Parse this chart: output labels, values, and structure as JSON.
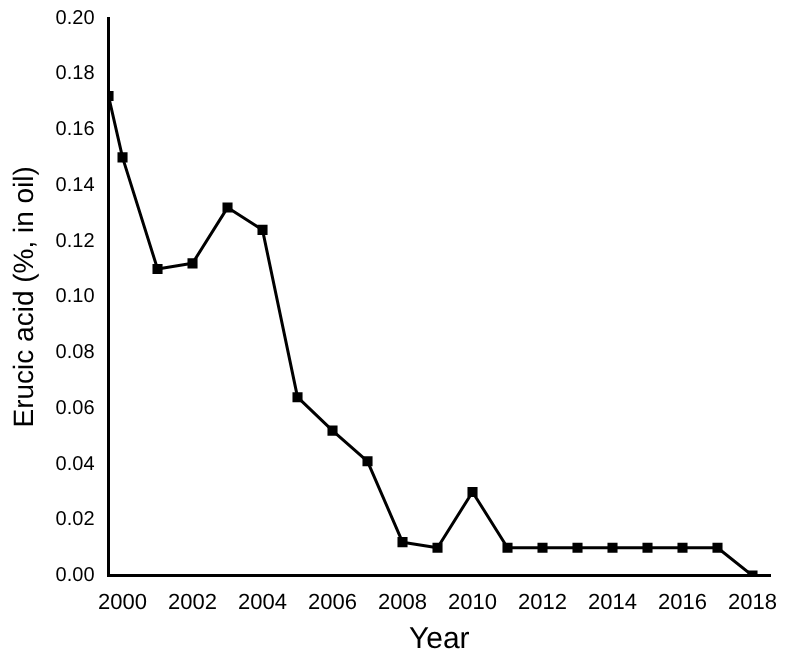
{
  "chart_data": {
    "type": "line",
    "xlabel": "Year",
    "ylabel": "Erucic acid (%, in oil)",
    "x": [
      1999.6,
      2000,
      2001,
      2002,
      2003,
      2004,
      2005,
      2006,
      2007,
      2008,
      2009,
      2010,
      2011,
      2012,
      2013,
      2014,
      2015,
      2016,
      2017,
      2018
    ],
    "series": [
      {
        "color": "#000000",
        "values": [
          0.172,
          0.15,
          0.11,
          0.112,
          0.132,
          0.124,
          0.064,
          0.052,
          0.041,
          0.012,
          0.01,
          0.03,
          0.01,
          0.01,
          0.01,
          0.01,
          0.01,
          0.01,
          0.01,
          0
        ]
      }
    ],
    "xlim": [
      1999.6,
      2018.5
    ],
    "xticks": [
      2000,
      2002,
      2004,
      2006,
      2008,
      2010,
      2012,
      2014,
      2016,
      2018
    ],
    "ylim": [
      0,
      0.2
    ],
    "yticks": [
      {
        "value": 0,
        "label": "0.00"
      },
      {
        "value": 0.02,
        "label": "0.02"
      },
      {
        "value": 0.04,
        "label": "0.04"
      },
      {
        "value": 0.06,
        "label": "0.06"
      },
      {
        "value": 0.08,
        "label": "0.08"
      },
      {
        "value": 0.1,
        "label": "0.10"
      },
      {
        "value": 0.12,
        "label": "0.12"
      },
      {
        "value": 0.14,
        "label": "0.14"
      },
      {
        "value": 0.16,
        "label": "0.16"
      },
      {
        "value": 0.18,
        "label": "0.18"
      },
      {
        "value": 0.2,
        "label": "0.20"
      }
    ],
    "grid": false,
    "legend": false,
    "marker": "square",
    "line_style": "solid"
  }
}
